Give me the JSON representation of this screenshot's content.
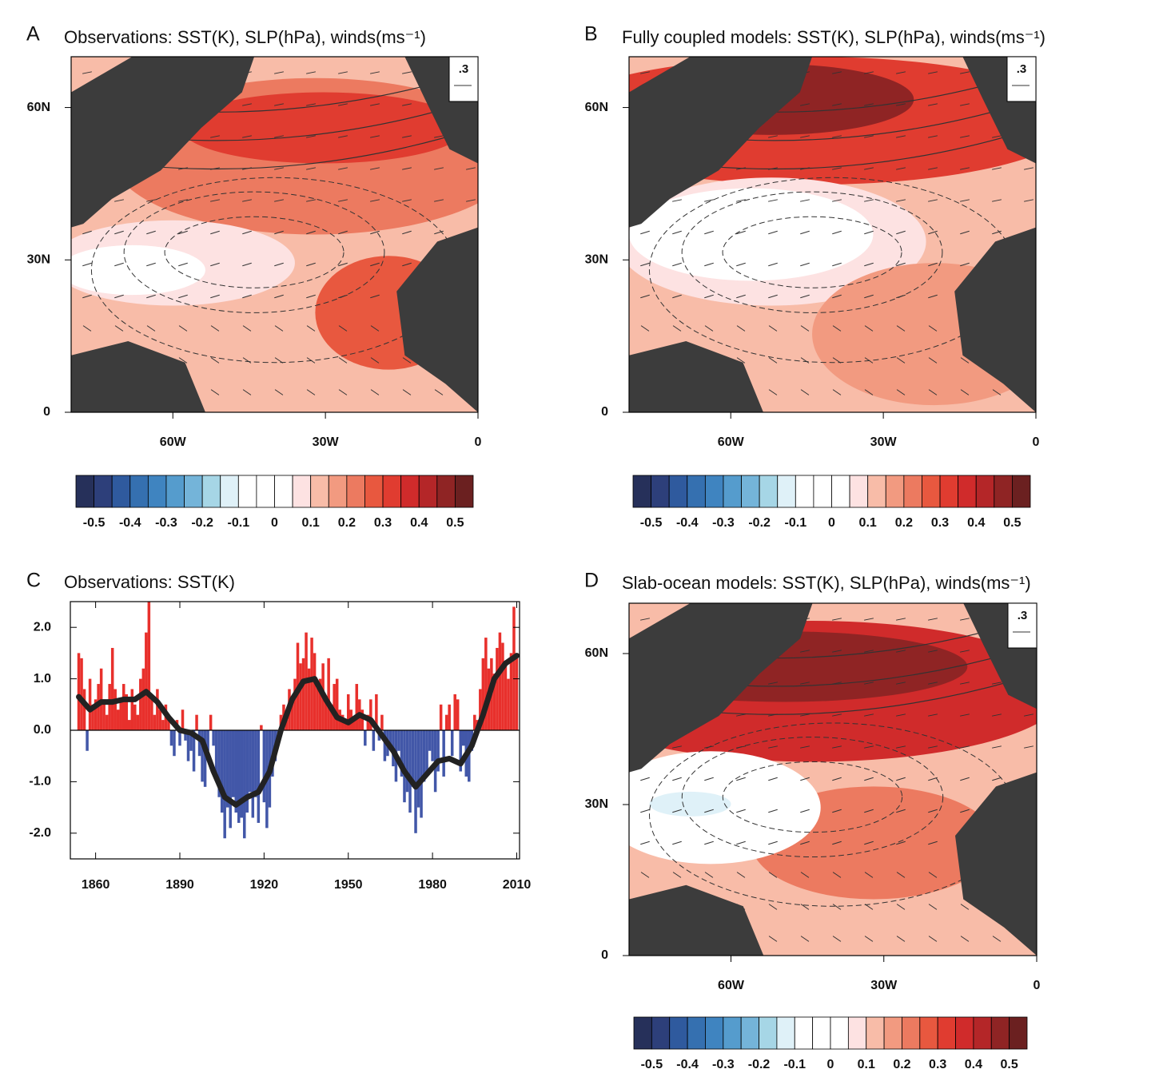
{
  "chart_data": [
    {
      "type": "map",
      "panel_label": "A",
      "title": "Observations: SST(K), SLP(hPa), winds(ms⁻¹)",
      "xlim": [
        -80,
        0
      ],
      "xticks": [
        {
          "value": -60,
          "label": "60W"
        },
        {
          "value": -30,
          "label": "30W"
        },
        0
      ],
      "ylim": [
        0,
        70
      ],
      "yticks": [
        0,
        {
          "value": 30,
          "label": "30N"
        },
        {
          "value": 60,
          "label": "60N"
        }
      ],
      "reference_vector": ".3",
      "colorbar_lim": [
        -0.55,
        0.55
      ],
      "colorbar_ticks": [
        -0.5,
        -0.4,
        -0.3,
        -0.2,
        -0.1,
        0,
        0.1,
        0.2,
        0.3,
        0.4,
        0.5
      ],
      "colorbar_colors": [
        "#26305a",
        "#2d3f7a",
        "#2f5a9e",
        "#3570b0",
        "#3f84c0",
        "#559ccd",
        "#74b4d9",
        "#a6d6e6",
        "#dff1f8",
        "#ffffff",
        "#ffffff",
        "#ffffff",
        "#fde2e2",
        "#f8bca8",
        "#f29a80",
        "#ec7a60",
        "#e8583f",
        "#e03c30",
        "#d02b2b",
        "#b42628",
        "#8f2424",
        "#6b2020"
      ],
      "land_color": "#3c3c3c"
    },
    {
      "type": "map",
      "panel_label": "B",
      "title": "Fully coupled models: SST(K), SLP(hPa), winds(ms⁻¹)",
      "xlim": [
        -80,
        0
      ],
      "xticks": [
        {
          "value": -60,
          "label": "60W"
        },
        {
          "value": -30,
          "label": "30W"
        },
        0
      ],
      "ylim": [
        0,
        70
      ],
      "yticks": [
        0,
        {
          "value": 30,
          "label": "30N"
        },
        {
          "value": 60,
          "label": "60N"
        }
      ],
      "reference_vector": ".3",
      "colorbar_lim": [
        -0.55,
        0.55
      ],
      "colorbar_ticks": [
        -0.5,
        -0.4,
        -0.3,
        -0.2,
        -0.1,
        0,
        0.1,
        0.2,
        0.3,
        0.4,
        0.5
      ],
      "colorbar_colors": [
        "#26305a",
        "#2d3f7a",
        "#2f5a9e",
        "#3570b0",
        "#3f84c0",
        "#559ccd",
        "#74b4d9",
        "#a6d6e6",
        "#dff1f8",
        "#ffffff",
        "#ffffff",
        "#ffffff",
        "#fde2e2",
        "#f8bca8",
        "#f29a80",
        "#ec7a60",
        "#e8583f",
        "#e03c30",
        "#d02b2b",
        "#b42628",
        "#8f2424",
        "#6b2020"
      ],
      "land_color": "#3c3c3c"
    },
    {
      "type": "bar",
      "panel_label": "C",
      "title": "Observations: SST(K)",
      "x": [
        1854,
        1855,
        1856,
        1857,
        1858,
        1859,
        1860,
        1861,
        1862,
        1863,
        1864,
        1865,
        1866,
        1867,
        1868,
        1869,
        1870,
        1871,
        1872,
        1873,
        1874,
        1875,
        1876,
        1877,
        1878,
        1879,
        1880,
        1881,
        1882,
        1883,
        1884,
        1885,
        1886,
        1887,
        1888,
        1889,
        1890,
        1891,
        1892,
        1893,
        1894,
        1895,
        1896,
        1897,
        1898,
        1899,
        1900,
        1901,
        1902,
        1903,
        1904,
        1905,
        1906,
        1907,
        1908,
        1909,
        1910,
        1911,
        1912,
        1913,
        1914,
        1915,
        1916,
        1917,
        1918,
        1919,
        1920,
        1921,
        1922,
        1923,
        1924,
        1925,
        1926,
        1927,
        1928,
        1929,
        1930,
        1931,
        1932,
        1933,
        1934,
        1935,
        1936,
        1937,
        1938,
        1939,
        1940,
        1941,
        1942,
        1943,
        1944,
        1945,
        1946,
        1947,
        1948,
        1949,
        1950,
        1951,
        1952,
        1953,
        1954,
        1955,
        1956,
        1957,
        1958,
        1959,
        1960,
        1961,
        1962,
        1963,
        1964,
        1965,
        1966,
        1967,
        1968,
        1969,
        1970,
        1971,
        1972,
        1973,
        1974,
        1975,
        1976,
        1977,
        1978,
        1979,
        1980,
        1981,
        1982,
        1983,
        1984,
        1985,
        1986,
        1987,
        1988,
        1989,
        1990,
        1991,
        1992,
        1993,
        1994,
        1995,
        1996,
        1997,
        1998,
        1999,
        2000,
        2001,
        2002,
        2003,
        2004,
        2005,
        2006,
        2007,
        2008,
        2009,
        2010
      ],
      "values": [
        1.5,
        1.4,
        0.8,
        -0.4,
        1.0,
        0.5,
        0.6,
        0.9,
        1.2,
        0.6,
        0.3,
        0.9,
        1.6,
        0.8,
        0.4,
        0.6,
        0.9,
        0.7,
        0.2,
        0.8,
        0.5,
        0.3,
        1.0,
        1.2,
        1.9,
        2.5,
        0.6,
        0.3,
        0.8,
        0.4,
        0.2,
        0.5,
        0.3,
        -0.3,
        -0.5,
        0.2,
        -0.3,
        0.4,
        -0.2,
        -0.6,
        -0.4,
        -0.8,
        0.3,
        -0.5,
        -1.0,
        -1.1,
        -0.4,
        0.3,
        -0.3,
        -0.9,
        -1.3,
        -1.6,
        -2.1,
        -1.5,
        -1.9,
        -1.3,
        -1.6,
        -1.8,
        -1.7,
        -2.1,
        -1.6,
        -1.2,
        -1.7,
        -1.3,
        -1.8,
        0.1,
        -1.4,
        -1.9,
        -1.5,
        -0.9,
        -0.6,
        -0.3,
        0.3,
        0.5,
        0.2,
        0.8,
        0.6,
        1.0,
        1.7,
        1.3,
        1.4,
        1.9,
        1.2,
        1.8,
        1.5,
        0.9,
        1.0,
        1.3,
        0.6,
        1.4,
        0.5,
        0.9,
        1.0,
        0.4,
        0.3,
        0.2,
        0.7,
        0.4,
        0.2,
        0.9,
        0.6,
        0.4,
        -0.3,
        0.3,
        0.6,
        -0.4,
        0.7,
        -0.2,
        0.3,
        -0.6,
        -0.5,
        -0.3,
        -0.7,
        -1.0,
        -0.4,
        -0.9,
        -1.4,
        -1.2,
        -1.6,
        -1.1,
        -2.0,
        -1.5,
        -1.7,
        -1.0,
        -0.8,
        -0.4,
        -0.6,
        -1.2,
        -0.8,
        0.5,
        -0.9,
        0.3,
        0.5,
        -0.5,
        0.7,
        0.6,
        -0.8,
        -0.3,
        -0.9,
        -1.0,
        -0.4,
        0.3,
        0.2,
        0.8,
        1.4,
        1.8,
        1.2,
        1.4,
        1.1,
        1.6,
        1.9,
        1.7,
        1.3,
        1.0,
        1.5,
        2.4,
        1.5
      ],
      "positive_color": "#e8302c",
      "negative_color": "#4257a8",
      "smoothed": {
        "x": [
          1854,
          1858,
          1862,
          1866,
          1870,
          1874,
          1878,
          1882,
          1886,
          1890,
          1894,
          1898,
          1902,
          1906,
          1910,
          1914,
          1918,
          1922,
          1926,
          1930,
          1934,
          1938,
          1942,
          1946,
          1950,
          1954,
          1958,
          1962,
          1966,
          1970,
          1974,
          1978,
          1982,
          1986,
          1990,
          1994,
          1998,
          2002,
          2006,
          2010
        ],
        "values": [
          0.65,
          0.4,
          0.55,
          0.55,
          0.6,
          0.6,
          0.75,
          0.55,
          0.25,
          0.0,
          -0.05,
          -0.2,
          -0.8,
          -1.3,
          -1.45,
          -1.3,
          -1.2,
          -0.8,
          0.0,
          0.6,
          0.95,
          1.0,
          0.6,
          0.25,
          0.15,
          0.3,
          0.2,
          -0.1,
          -0.4,
          -0.8,
          -1.1,
          -0.85,
          -0.6,
          -0.55,
          -0.65,
          -0.3,
          0.3,
          1.0,
          1.3,
          1.45
        ],
        "color": "#222222"
      },
      "xlim": [
        1851,
        2011
      ],
      "xticks": [
        1860,
        1890,
        1920,
        1950,
        1980,
        2010
      ],
      "ylim": [
        -2.5,
        2.5
      ],
      "yticks": [
        {
          "value": 2,
          "label": "2.0"
        },
        {
          "value": 1,
          "label": "1.0"
        },
        {
          "value": 0,
          "label": "0.0"
        },
        {
          "value": -1,
          "label": "-1.0"
        },
        {
          "value": -2,
          "label": "-2.0"
        }
      ]
    },
    {
      "type": "map",
      "panel_label": "D",
      "title": "Slab-ocean models: SST(K), SLP(hPa), winds(ms⁻¹)",
      "xlim": [
        -80,
        0
      ],
      "xticks": [
        {
          "value": -60,
          "label": "60W"
        },
        {
          "value": -30,
          "label": "30W"
        },
        0
      ],
      "ylim": [
        0,
        70
      ],
      "yticks": [
        0,
        {
          "value": 30,
          "label": "30N"
        },
        {
          "value": 60,
          "label": "60N"
        }
      ],
      "reference_vector": ".3",
      "colorbar_lim": [
        -0.55,
        0.55
      ],
      "colorbar_ticks": [
        -0.5,
        -0.4,
        -0.3,
        -0.2,
        -0.1,
        0,
        0.1,
        0.2,
        0.3,
        0.4,
        0.5
      ],
      "colorbar_colors": [
        "#26305a",
        "#2d3f7a",
        "#2f5a9e",
        "#3570b0",
        "#3f84c0",
        "#559ccd",
        "#74b4d9",
        "#a6d6e6",
        "#dff1f8",
        "#ffffff",
        "#ffffff",
        "#ffffff",
        "#fde2e2",
        "#f8bca8",
        "#f29a80",
        "#ec7a60",
        "#e8583f",
        "#e03c30",
        "#d02b2b",
        "#b42628",
        "#8f2424",
        "#6b2020"
      ],
      "land_color": "#3c3c3c"
    }
  ]
}
